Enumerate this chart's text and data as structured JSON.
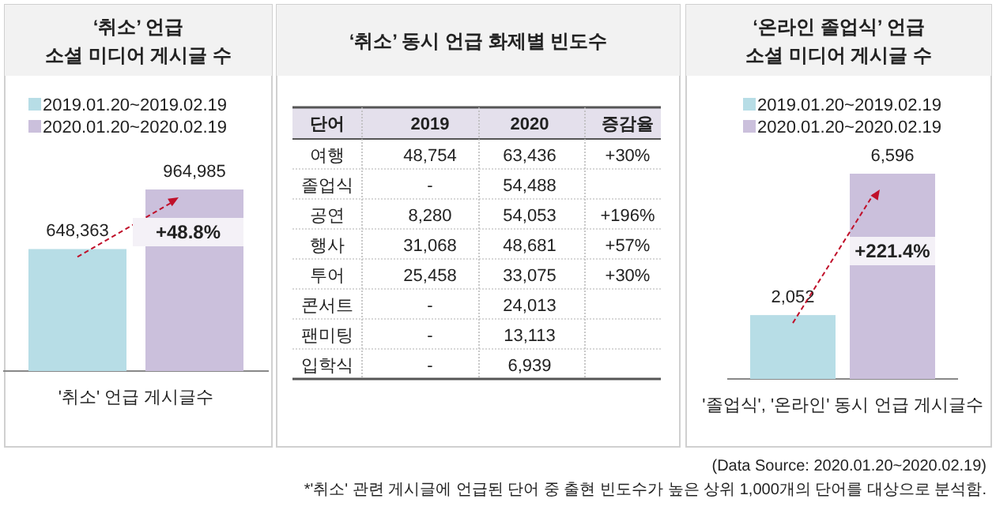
{
  "chart_data": [
    {
      "type": "bar",
      "title": "‘취소’ 언급",
      "subtitle": "소셜 미디어 게시글 수",
      "categories": [
        null,
        null
      ],
      "xlabel": "'취소' 언급 게시글수",
      "stacked": true,
      "legend": "top",
      "annotations": [
        "+48.8%"
      ],
      "series": [
        {
          "name": "2019.01.20~2019.02.19",
          "color": "#b7dde6",
          "values": [
            648363,
            null
          ],
          "value_labels": [
            "648,363",
            null
          ]
        },
        {
          "name": "2020.01.20~2020.02.19",
          "color": "#cbc0dc",
          "values": [
            null,
            964985
          ],
          "value_labels": [
            null,
            "964,985"
          ]
        }
      ]
    },
    {
      "type": "other",
      "title": "‘취소’ 동시 언급 화제별 빈도수",
      "ylabel": "단어",
      "categories": [
        "2019",
        "2020",
        "증감율"
      ],
      "y_categories": [
        "여행",
        "졸업식",
        "공연",
        "행사",
        "투어",
        "콘서트",
        "팬미팅",
        "입학식"
      ],
      "cell_labels": [
        [
          "48,754",
          "63,436",
          "+30%"
        ],
        [
          "-",
          "54,488",
          null
        ],
        [
          "8,280",
          "54,053",
          "+196%"
        ],
        [
          "31,068",
          "48,681",
          "+57%"
        ],
        [
          "25,458",
          "33,075",
          "+30%"
        ],
        [
          "-",
          "24,013",
          null
        ],
        [
          "-",
          "13,113",
          null
        ],
        [
          "-",
          "6,939",
          null
        ]
      ],
      "annotations": [
        "(Data Source: 2020.01.20~2020.02.19)",
        "*'취소' 관련 게시글에 언급된 단어 중 출현 빈도수가 높은 상위 1,000개의 단어를 대상으로 분석함."
      ]
    },
    {
      "type": "bar",
      "title": "‘온라인 졸업식’ 언급",
      "subtitle": "소셜 미디어 게시글 수",
      "categories": [
        null,
        null
      ],
      "xlabel": "'졸업식', '온라인' 동시 언급 게시글수",
      "stacked": true,
      "legend": "top",
      "annotations": [
        "+221.4%"
      ],
      "series": [
        {
          "name": "2019.01.20~2019.02.19",
          "color": "#b7dde6",
          "values": [
            2052,
            null
          ],
          "value_labels": [
            "2,052",
            null
          ]
        },
        {
          "name": "2020.01.20~2020.02.19",
          "color": "#cbc0dc",
          "values": [
            null,
            6596
          ],
          "value_labels": [
            null,
            "6,596"
          ]
        }
      ]
    }
  ]
}
